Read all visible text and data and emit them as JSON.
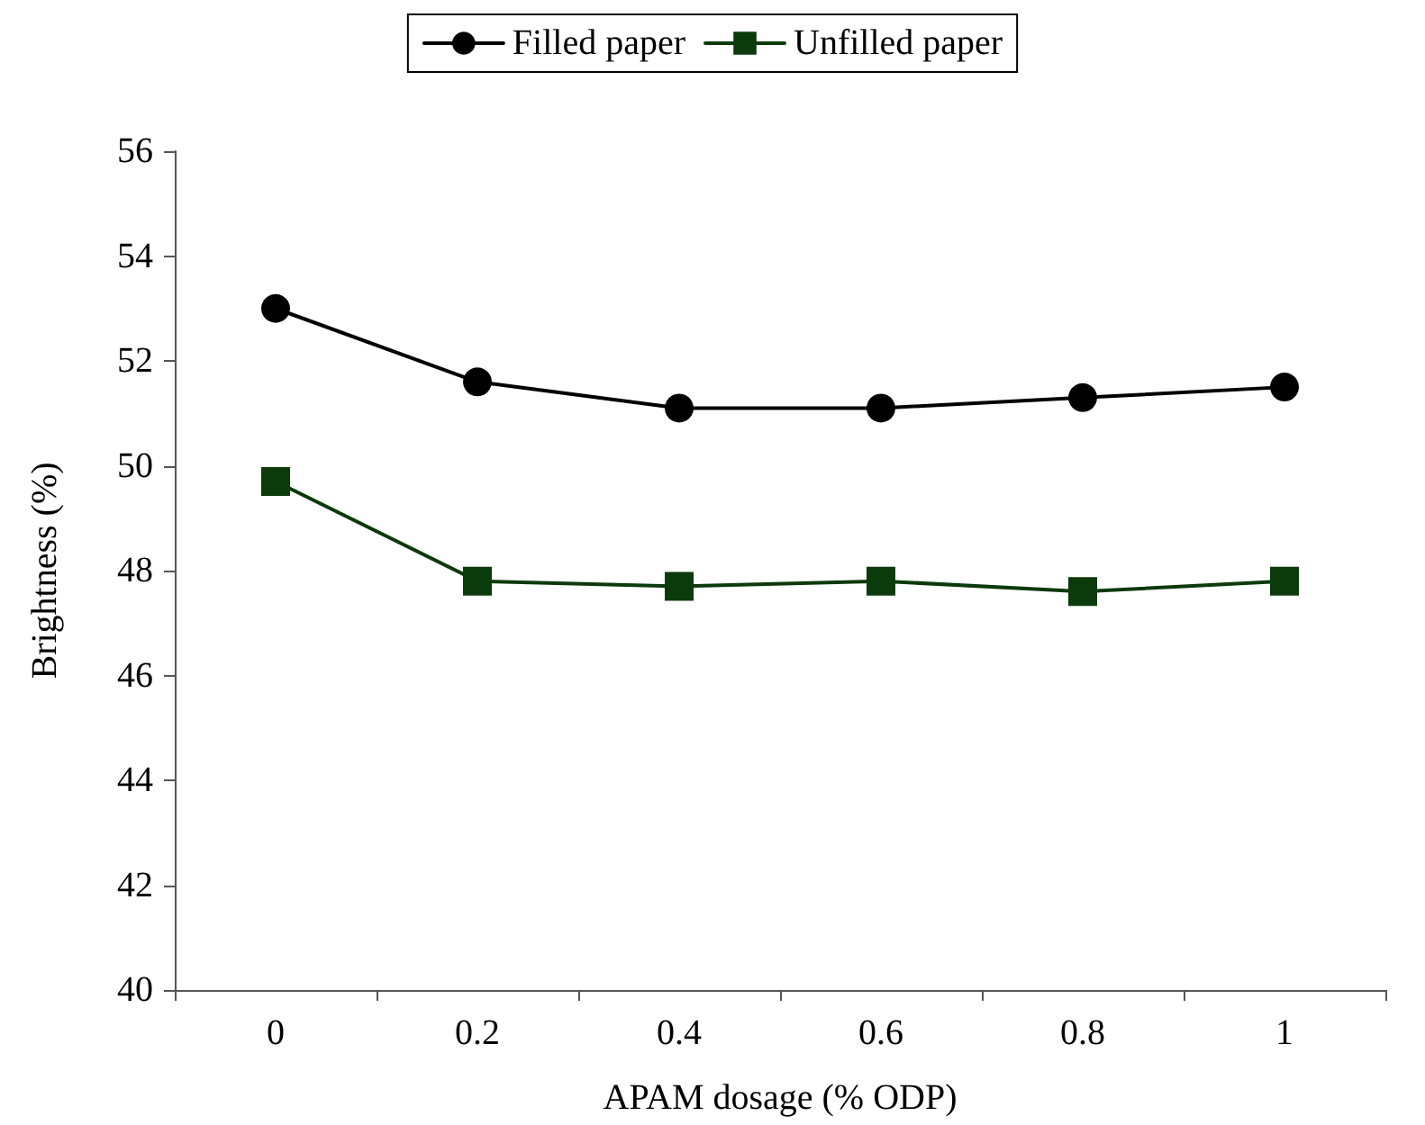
{
  "chart_data": {
    "type": "line",
    "xlabel": "APAM dosage (% ODP)",
    "ylabel": "Brightness (%)",
    "categories": [
      "0",
      "0.2",
      "0.4",
      "0.6",
      "0.8",
      "1"
    ],
    "series": [
      {
        "name": "Filled paper",
        "color": "#000000",
        "marker": "circle",
        "values": [
          53.0,
          51.6,
          51.1,
          51.1,
          51.3,
          51.5
        ]
      },
      {
        "name": "Unfilled paper",
        "color": "#0b3a0b",
        "marker": "square",
        "values": [
          49.7,
          47.8,
          47.7,
          47.8,
          47.6,
          47.8
        ]
      }
    ],
    "ylim": [
      40,
      56
    ],
    "yticks": [
      40,
      42,
      44,
      46,
      48,
      50,
      52,
      54,
      56
    ],
    "grid": false,
    "legend": "top",
    "line_style": "solid"
  }
}
